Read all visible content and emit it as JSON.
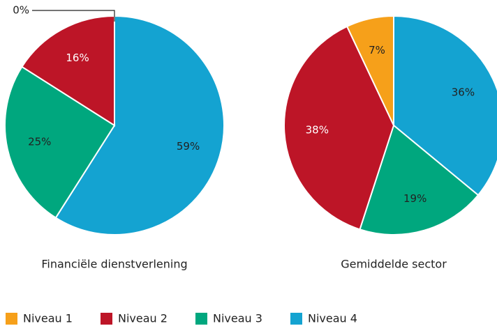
{
  "chart_data": [
    {
      "type": "pie",
      "title": "Financiële dienstverlening",
      "categories": [
        "Niveau 1",
        "Niveau 2",
        "Niveau 3",
        "Niveau 4"
      ],
      "values": [
        0,
        16,
        25,
        59
      ],
      "value_labels": [
        "0%",
        "16%",
        "25%",
        "59%"
      ],
      "colors": [
        "#f6a01a",
        "#bd1527",
        "#00a77e",
        "#14a3d1"
      ]
    },
    {
      "type": "pie",
      "title": "Gemiddelde sector",
      "categories": [
        "Niveau 1",
        "Niveau 2",
        "Niveau 3",
        "Niveau 4"
      ],
      "values": [
        7,
        38,
        19,
        36
      ],
      "value_labels": [
        "7%",
        "38%",
        "19%",
        "36%"
      ],
      "colors": [
        "#f6a01a",
        "#bd1527",
        "#00a77e",
        "#14a3d1"
      ]
    }
  ]
}
